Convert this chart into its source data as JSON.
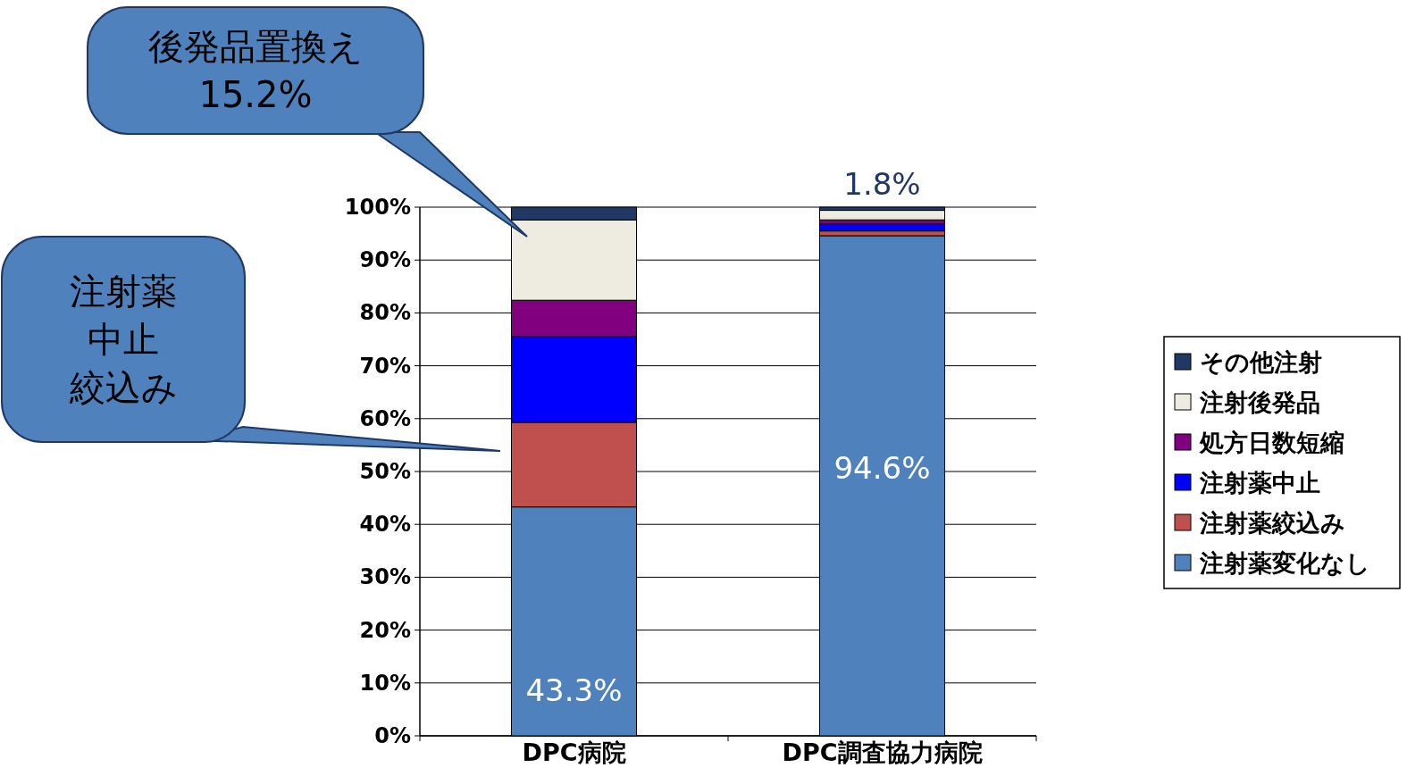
{
  "chart_data": {
    "type": "bar",
    "stacked": true,
    "categories": [
      "DPC病院",
      "DPC調査協力病院"
    ],
    "series": [
      {
        "name": "注射薬変化なし",
        "color": "#4f81bd",
        "values": [
          43.3,
          94.6
        ],
        "value_labels": [
          "43.3%",
          "94.6%"
        ]
      },
      {
        "name": "注射薬絞込み",
        "color": "#c0504d",
        "values": [
          16.0,
          0.9
        ],
        "value_labels": [
          null,
          null
        ]
      },
      {
        "name": "注射薬中止",
        "color": "#0000ff",
        "values": [
          16.2,
          1.3
        ],
        "value_labels": [
          null,
          null
        ]
      },
      {
        "name": "処方日数短縮",
        "color": "#800080",
        "values": [
          6.9,
          0.8
        ],
        "value_labels": [
          null,
          null
        ]
      },
      {
        "name": "注射後発品",
        "color": "#eeece1",
        "values": [
          15.2,
          1.8
        ],
        "value_labels": [
          null,
          "1.8%"
        ]
      },
      {
        "name": "その他注射",
        "color": "#1f3864",
        "values": [
          2.4,
          0.6
        ],
        "value_labels": [
          null,
          null
        ]
      }
    ],
    "ylim": [
      0,
      100
    ],
    "yticks": [
      {
        "value": 0,
        "label": "0%"
      },
      {
        "value": 10,
        "label": "10%"
      },
      {
        "value": 20,
        "label": "20%"
      },
      {
        "value": 30,
        "label": "30%"
      },
      {
        "value": 40,
        "label": "40%"
      },
      {
        "value": 50,
        "label": "50%"
      },
      {
        "value": 60,
        "label": "60%"
      },
      {
        "value": 70,
        "label": "70%"
      },
      {
        "value": 80,
        "label": "80%"
      },
      {
        "value": 90,
        "label": "90%"
      },
      {
        "value": 100,
        "label": "100%"
      }
    ],
    "grid": "y",
    "legend": "right",
    "annotations": [
      "後発品置換え15.2%",
      "注射薬中止絞込み"
    ]
  }
}
